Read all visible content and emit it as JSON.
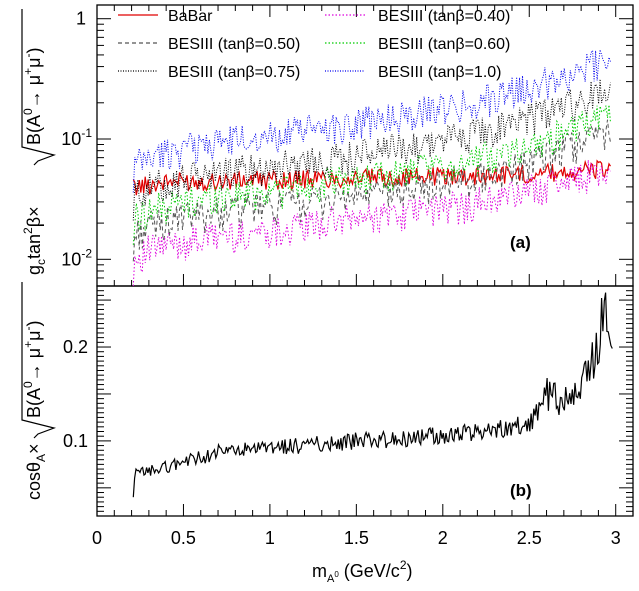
{
  "colors": {
    "babar": "#e00000",
    "t040": "#dd00dd",
    "t050": "#555555",
    "t060": "#00cc00",
    "t075": "#000000",
    "t100": "#0000ee",
    "bottom": "#000000",
    "axis": "#000000"
  },
  "chart_data": [
    {
      "type": "line",
      "panel_label": "(a)",
      "ylabel_text": "g",
      "ylabel_sub": "c",
      "ylabel_mid": "tan",
      "ylabel_sup": "2",
      "ylabel_rest": "β×",
      "ylabel_sqrt": "B(A",
      "ylabel_sqrt_sup": "0",
      "ylabel_sqrt_mid": "→ μ",
      "ylabel_sqrt_sup2": "+",
      "ylabel_sqrt_mid2": "μ",
      "ylabel_sqrt_sup3": "-",
      "ylabel_sqrt_end": ")",
      "yscale": "log",
      "ylim": [
        0.006,
        1.3
      ],
      "xlim": [
        0,
        3.1
      ],
      "ytick_labels": [
        {
          "base": "10",
          "exp": "-2",
          "value": 0.01
        },
        {
          "base": "10",
          "exp": "-1",
          "value": 0.1
        },
        {
          "base": "1",
          "exp": "",
          "value": 1
        }
      ],
      "legend_position": "top",
      "series": [
        {
          "name": "BaBar",
          "key": "babar",
          "dash": "",
          "x": [
            0.21,
            0.3,
            0.4,
            0.5,
            0.6,
            0.7,
            0.8,
            0.9,
            1.0,
            1.1,
            1.2,
            1.3,
            1.4,
            1.5,
            1.6,
            1.7,
            1.8,
            1.9,
            2.0,
            2.1,
            2.2,
            2.3,
            2.4,
            2.5,
            2.6,
            2.7,
            2.8,
            2.9,
            2.97
          ],
          "y": [
            0.04,
            0.042,
            0.044,
            0.045,
            0.045,
            0.045,
            0.045,
            0.046,
            0.046,
            0.046,
            0.047,
            0.047,
            0.047,
            0.048,
            0.048,
            0.048,
            0.049,
            0.049,
            0.05,
            0.05,
            0.05,
            0.051,
            0.052,
            0.052,
            0.053,
            0.054,
            0.055,
            0.056,
            0.058
          ]
        },
        {
          "name": "BESIII (tanβ=0.40)",
          "key": "t040",
          "dash": "1.5,2",
          "x": [
            0.21,
            0.3,
            0.4,
            0.5,
            0.6,
            0.7,
            0.8,
            0.9,
            1.0,
            1.1,
            1.2,
            1.3,
            1.4,
            1.5,
            1.6,
            1.7,
            1.8,
            1.9,
            2.0,
            2.1,
            2.2,
            2.3,
            2.4,
            2.5,
            2.6,
            2.7,
            2.8,
            2.9,
            2.97
          ],
          "y": [
            0.01,
            0.012,
            0.013,
            0.014,
            0.015,
            0.016,
            0.016,
            0.017,
            0.018,
            0.018,
            0.019,
            0.02,
            0.021,
            0.022,
            0.023,
            0.024,
            0.025,
            0.026,
            0.027,
            0.028,
            0.03,
            0.032,
            0.035,
            0.038,
            0.042,
            0.046,
            0.05,
            0.054,
            0.058
          ]
        },
        {
          "name": "BESIII (tanβ=0.50)",
          "key": "t050",
          "dash": "4,3",
          "x": [
            0.21,
            0.3,
            0.4,
            0.5,
            0.6,
            0.7,
            0.8,
            0.9,
            1.0,
            1.1,
            1.2,
            1.3,
            1.4,
            1.5,
            1.6,
            1.7,
            1.8,
            1.9,
            2.0,
            2.1,
            2.2,
            2.3,
            2.4,
            2.5,
            2.6,
            2.7,
            2.8,
            2.9,
            2.97
          ],
          "y": [
            0.016,
            0.019,
            0.021,
            0.022,
            0.024,
            0.025,
            0.026,
            0.027,
            0.028,
            0.029,
            0.03,
            0.031,
            0.032,
            0.034,
            0.035,
            0.037,
            0.039,
            0.041,
            0.043,
            0.046,
            0.049,
            0.053,
            0.058,
            0.064,
            0.072,
            0.082,
            0.095,
            0.11,
            0.125
          ]
        },
        {
          "name": "BESIII (tanβ=0.60)",
          "key": "t060",
          "dash": "1.5,2",
          "x": [
            0.21,
            0.3,
            0.4,
            0.5,
            0.6,
            0.7,
            0.8,
            0.9,
            1.0,
            1.1,
            1.2,
            1.3,
            1.4,
            1.5,
            1.6,
            1.7,
            1.8,
            1.9,
            2.0,
            2.1,
            2.2,
            2.3,
            2.4,
            2.5,
            2.6,
            2.7,
            2.8,
            2.9,
            2.97
          ],
          "y": [
            0.022,
            0.026,
            0.028,
            0.03,
            0.032,
            0.034,
            0.035,
            0.036,
            0.038,
            0.039,
            0.041,
            0.043,
            0.045,
            0.047,
            0.049,
            0.051,
            0.054,
            0.057,
            0.06,
            0.064,
            0.069,
            0.075,
            0.082,
            0.09,
            0.1,
            0.115,
            0.13,
            0.15,
            0.17
          ]
        },
        {
          "name": "BESIII (tanβ=0.75)",
          "key": "t075",
          "dash": "1,1.5",
          "x": [
            0.21,
            0.3,
            0.4,
            0.5,
            0.6,
            0.7,
            0.8,
            0.9,
            1.0,
            1.1,
            1.2,
            1.3,
            1.4,
            1.5,
            1.6,
            1.7,
            1.8,
            1.9,
            2.0,
            2.1,
            2.2,
            2.3,
            2.4,
            2.5,
            2.6,
            2.7,
            2.8,
            2.9,
            2.97
          ],
          "y": [
            0.035,
            0.04,
            0.044,
            0.047,
            0.05,
            0.053,
            0.055,
            0.058,
            0.06,
            0.062,
            0.065,
            0.068,
            0.071,
            0.075,
            0.079,
            0.083,
            0.088,
            0.093,
            0.1,
            0.107,
            0.115,
            0.125,
            0.137,
            0.15,
            0.168,
            0.19,
            0.215,
            0.245,
            0.28
          ]
        },
        {
          "name": "BESIII (tanβ=1.0)",
          "key": "t100",
          "dash": "1,1.5",
          "x": [
            0.21,
            0.3,
            0.4,
            0.5,
            0.6,
            0.7,
            0.8,
            0.9,
            1.0,
            1.1,
            1.2,
            1.3,
            1.4,
            1.5,
            1.6,
            1.7,
            1.8,
            1.9,
            2.0,
            2.1,
            2.2,
            2.3,
            2.4,
            2.5,
            2.6,
            2.7,
            2.8,
            2.9,
            2.97
          ],
          "y": [
            0.06,
            0.07,
            0.078,
            0.085,
            0.09,
            0.095,
            0.1,
            0.105,
            0.11,
            0.114,
            0.12,
            0.125,
            0.13,
            0.138,
            0.145,
            0.153,
            0.162,
            0.172,
            0.183,
            0.196,
            0.21,
            0.228,
            0.25,
            0.275,
            0.305,
            0.345,
            0.39,
            0.45,
            0.52
          ]
        }
      ]
    },
    {
      "type": "line",
      "panel_label": "(b)",
      "ylabel_text": "cosθ",
      "ylabel_sub": "A",
      "ylabel_rest": "×",
      "ylabel_sqrt": "B(A",
      "ylabel_sqrt_sup": "0",
      "ylabel_sqrt_mid": "→ μ",
      "ylabel_sqrt_sup2": "+",
      "ylabel_sqrt_mid2": "μ",
      "ylabel_sqrt_sup3": "-",
      "ylabel_sqrt_end": ")",
      "yscale": "linear",
      "ylim": [
        0.02,
        0.265
      ],
      "xlim": [
        0,
        3.1
      ],
      "ytick_labels": [
        {
          "label": "0.1",
          "value": 0.1
        },
        {
          "label": "0.2",
          "value": 0.2
        }
      ],
      "series": [
        {
          "name": "",
          "key": "bottom",
          "x": [
            0.21,
            0.22,
            0.3,
            0.4,
            0.5,
            0.6,
            0.7,
            0.8,
            0.9,
            1.0,
            1.1,
            1.2,
            1.3,
            1.4,
            1.5,
            1.6,
            1.7,
            1.8,
            1.9,
            2.0,
            2.1,
            2.2,
            2.3,
            2.4,
            2.5,
            2.55,
            2.6,
            2.7,
            2.8,
            2.85,
            2.9,
            2.93,
            2.96,
            2.98
          ],
          "y": [
            0.04,
            0.065,
            0.068,
            0.072,
            0.078,
            0.082,
            0.088,
            0.09,
            0.09,
            0.092,
            0.094,
            0.095,
            0.097,
            0.098,
            0.1,
            0.1,
            0.102,
            0.103,
            0.105,
            0.106,
            0.107,
            0.11,
            0.112,
            0.115,
            0.118,
            0.13,
            0.15,
            0.14,
            0.16,
            0.18,
            0.2,
            0.25,
            0.21,
            0.18
          ]
        }
      ]
    }
  ],
  "xaxis": {
    "tick_labels": [
      {
        "label": "0",
        "value": 0
      },
      {
        "label": "0.5",
        "value": 0.5
      },
      {
        "label": "1",
        "value": 1
      },
      {
        "label": "1.5",
        "value": 1.5
      },
      {
        "label": "2",
        "value": 2
      },
      {
        "label": "2.5",
        "value": 2.5
      },
      {
        "label": "3",
        "value": 3
      }
    ],
    "label_m": "m",
    "label_sub": "A",
    "label_subsup": "0",
    "label_rest": " (GeV/c",
    "label_sup": "2",
    "label_end": ")"
  }
}
